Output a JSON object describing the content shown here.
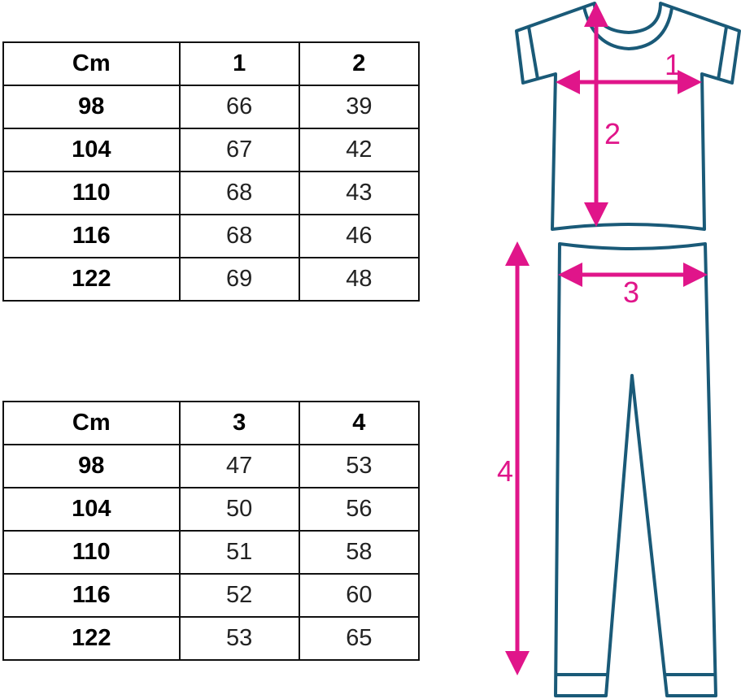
{
  "colors": {
    "outline": "#1a5a78",
    "arrow": "#e0158a"
  },
  "tables": [
    {
      "headers": [
        "Cm",
        "1",
        "2"
      ],
      "rows": [
        [
          "98",
          "66",
          "39"
        ],
        [
          "104",
          "67",
          "42"
        ],
        [
          "110",
          "68",
          "43"
        ],
        [
          "116",
          "68",
          "46"
        ],
        [
          "122",
          "69",
          "48"
        ]
      ]
    },
    {
      "headers": [
        "Cm",
        "3",
        "4"
      ],
      "rows": [
        [
          "98",
          "47",
          "53"
        ],
        [
          "104",
          "50",
          "56"
        ],
        [
          "110",
          "51",
          "58"
        ],
        [
          "116",
          "52",
          "60"
        ],
        [
          "122",
          "53",
          "65"
        ]
      ]
    }
  ],
  "diagram": {
    "labels": [
      "1",
      "2",
      "3",
      "4"
    ]
  }
}
